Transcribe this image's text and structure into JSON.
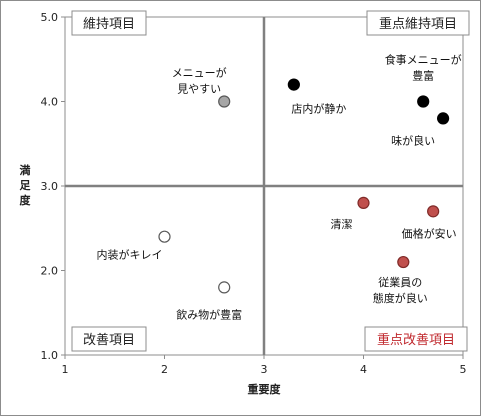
{
  "chart_data": {
    "type": "scatter",
    "title": "",
    "xlabel": "重要度",
    "ylabel": "満足度",
    "xlim": [
      1,
      5
    ],
    "ylim": [
      1.0,
      5.0
    ],
    "x_ticks": [
      "1",
      "2",
      "3",
      "4",
      "5"
    ],
    "y_ticks": [
      "1.0",
      "2.0",
      "3.0",
      "4.0",
      "5.0"
    ],
    "grid": false,
    "reference_lines": {
      "x": 3,
      "y": 3.0
    },
    "quadrants": [
      {
        "name": "維持項目",
        "position": "top-left",
        "color": "#222222"
      },
      {
        "name": "重点維持項目",
        "position": "top-right",
        "color": "#222222"
      },
      {
        "name": "改善項目",
        "position": "bottom-left",
        "color": "#222222"
      },
      {
        "name": "重点改善項目",
        "position": "bottom-right",
        "color": "#c0282d"
      }
    ],
    "points": [
      {
        "label": "メニューが\n見やすい",
        "x": 2.6,
        "y": 4.0,
        "fill": "#a6a6a6",
        "stroke": "#595959"
      },
      {
        "label": "店内が静か",
        "x": 3.3,
        "y": 4.2,
        "fill": "#000000",
        "stroke": "#000000"
      },
      {
        "label": "食事メニューが\n豊富",
        "x": 4.6,
        "y": 4.0,
        "fill": "#000000",
        "stroke": "#000000"
      },
      {
        "label": "味が良い",
        "x": 4.8,
        "y": 3.8,
        "fill": "#000000",
        "stroke": "#000000"
      },
      {
        "label": "清潔",
        "x": 4.0,
        "y": 2.8,
        "fill": "#c0504d",
        "stroke": "#7f2a28"
      },
      {
        "label": "価格が安い",
        "x": 4.7,
        "y": 2.7,
        "fill": "#c0504d",
        "stroke": "#7f2a28"
      },
      {
        "label": "従業員の\n態度が良い",
        "x": 4.4,
        "y": 2.1,
        "fill": "#c0504d",
        "stroke": "#7f2a28"
      },
      {
        "label": "内装がキレイ",
        "x": 2.0,
        "y": 2.4,
        "fill": "#ffffff",
        "stroke": "#595959"
      },
      {
        "label": "飲み物が豊富",
        "x": 2.6,
        "y": 1.8,
        "fill": "#ffffff",
        "stroke": "#595959"
      }
    ]
  }
}
